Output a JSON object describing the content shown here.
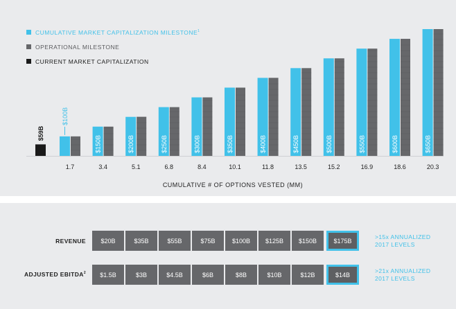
{
  "colors": {
    "cumulative": "#41c1e9",
    "operational": "#66676a",
    "current": "#1a1a1a",
    "panel": "#eaebed",
    "text": "#1e1e1e"
  },
  "legend": [
    {
      "label": "CUMULATIVE MARKET CAPITALIZATION MILESTONE",
      "sup": "1",
      "color": "#41c1e9"
    },
    {
      "label": "OPERATIONAL MILESTONE",
      "sup": "",
      "color": "#66676a"
    },
    {
      "label": "CURRENT MARKET CAPITALIZATION",
      "sup": "",
      "color": "#1a1a1a"
    }
  ],
  "chart_data": {
    "type": "bar",
    "title": "",
    "xlabel": "CUMULATIVE # OF OPTIONS VESTED (MM)",
    "ylabel": "",
    "current": {
      "label": "$59B",
      "value": 59
    },
    "categories": [
      "1.7",
      "3.4",
      "5.1",
      "6.8",
      "8.4",
      "10.1",
      "11.8",
      "13.5",
      "15.2",
      "16.9",
      "18.6",
      "20.3"
    ],
    "series": [
      {
        "name": "CUMULATIVE MARKET CAPITALIZATION MILESTONE",
        "values": [
          100,
          150,
          200,
          250,
          300,
          350,
          400,
          450,
          500,
          550,
          600,
          650
        ]
      },
      {
        "name": "OPERATIONAL MILESTONE",
        "values": [
          100,
          150,
          200,
          250,
          300,
          350,
          400,
          450,
          500,
          550,
          600,
          650
        ]
      }
    ],
    "bar_labels": [
      "$100B",
      "$150B",
      "$200B",
      "$250B",
      "$300B",
      "$350B",
      "$400B",
      "$450B",
      "$500B",
      "$550B",
      "$600B",
      "$650B"
    ],
    "ylim": [
      0,
      650
    ],
    "grid": false,
    "legend_position": "top-left"
  },
  "milestones": {
    "revenue": {
      "label": "REVENUE",
      "sup": "",
      "values": [
        "$20B",
        "$35B",
        "$55B",
        "$75B",
        "$100B",
        "$125B",
        "$150B",
        "$175B"
      ],
      "note_line1": ">15x ANNUALIZED",
      "note_line2": "2017 LEVELS"
    },
    "ebitda": {
      "label": "ADJUSTED EBITDA",
      "sup": "2",
      "values": [
        "$1.5B",
        "$3B",
        "$4.5B",
        "$6B",
        "$8B",
        "$10B",
        "$12B",
        "$14B"
      ],
      "note_line1": ">21x ANNUALIZED",
      "note_line2": "2017 LEVELS"
    }
  }
}
